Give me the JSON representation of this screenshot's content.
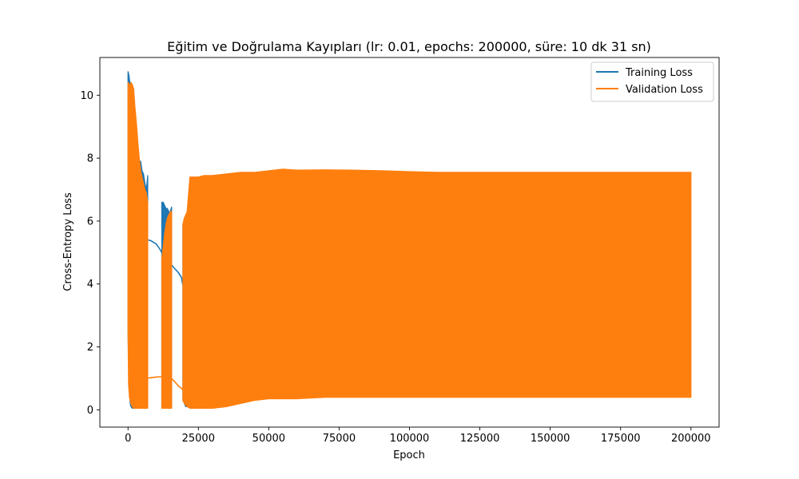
{
  "chart_data": {
    "type": "line",
    "title": "Eğitim ve Doğrulama Kayıpları (lr: 0.01, epochs: 200000, süre: 10 dk 31 sn)",
    "xlabel": "Epoch",
    "ylabel": "Cross-Entropy Loss",
    "xlim": [
      -10000,
      210000
    ],
    "ylim": [
      -0.55,
      11.2
    ],
    "x_ticks": [
      0,
      25000,
      50000,
      75000,
      100000,
      125000,
      150000,
      175000,
      200000
    ],
    "y_ticks": [
      0,
      2,
      4,
      6,
      8,
      10
    ],
    "grid": false,
    "legend_position": "top-right",
    "series": [
      {
        "name": "Training Loss",
        "color": "#1f77b4",
        "segments": [
          {
            "x": [
              0,
              200,
              400,
              600,
              800,
              1000,
              1500,
              2000,
              2500,
              3000,
              3500,
              4000,
              4500,
              5000,
              5500,
              6000,
              6500,
              7000
            ],
            "upper": [
              10.75,
              10.7,
              10.6,
              10.45,
              10.4,
              10.3,
              9.9,
              9.5,
              9.0,
              8.6,
              8.2,
              7.9,
              7.9,
              7.6,
              7.5,
              7.2,
              7.0,
              7.45
            ],
            "lower": [
              2.5,
              1.6,
              0.8,
              0.4,
              0.2,
              0.1,
              0.05,
              0.05,
              0.05,
              0.1,
              0.1,
              0.1,
              0.1,
              0.1,
              0.1,
              0.1,
              0.1,
              0.1
            ]
          },
          {
            "x": [
              12000,
              12500,
              13000,
              13500,
              14000,
              14500,
              15000,
              15500
            ],
            "upper": [
              6.6,
              6.6,
              6.5,
              6.4,
              6.4,
              6.3,
              6.3,
              6.45
            ],
            "lower": [
              0.05,
              0.05,
              0.05,
              0.05,
              0.05,
              0.05,
              0.05,
              0.05
            ]
          },
          {
            "x": [
              19500,
              20000,
              20500,
              21000,
              21500
            ],
            "upper": [
              5.9,
              5.95,
              5.8,
              6.0,
              6.2
            ],
            "lower": [
              0.3,
              0.2,
              0.1,
              0.1,
              0.1
            ]
          }
        ],
        "connector": {
          "x": [
            7000,
            8000,
            9000,
            10000,
            11000,
            12000,
            13000,
            14000,
            15000,
            16000,
            17000,
            18000,
            19000,
            20000
          ],
          "y": [
            5.4,
            5.38,
            5.33,
            5.27,
            5.15,
            5.0,
            4.85,
            4.75,
            4.65,
            4.55,
            4.45,
            4.35,
            4.2,
            3.7
          ]
        }
      },
      {
        "name": "Validation Loss",
        "color": "#ff7f0e",
        "segments": [
          {
            "x": [
              0,
              200,
              500,
              1000,
              1500,
              2000,
              2500,
              3000,
              3500,
              4000,
              4500,
              5000,
              5500,
              6000,
              6500,
              7000
            ],
            "upper": [
              10.4,
              10.4,
              10.3,
              10.4,
              10.35,
              10.2,
              9.6,
              9.1,
              8.5,
              8.0,
              7.6,
              7.4,
              7.2,
              7.0,
              6.9,
              6.6
            ],
            "lower": [
              2.5,
              0.8,
              0.4,
              0.2,
              0.1,
              0.05,
              0.05,
              0.05,
              0.05,
              0.05,
              0.05,
              0.05,
              0.05,
              0.05,
              0.05,
              0.05
            ]
          },
          {
            "x": [
              12000,
              12500,
              13000,
              13500,
              14000,
              14500,
              15000,
              15500
            ],
            "upper": [
              4.8,
              5.2,
              5.6,
              5.9,
              6.1,
              6.2,
              6.3,
              6.3
            ],
            "lower": [
              0.05,
              0.05,
              0.05,
              0.05,
              0.05,
              0.05,
              0.05,
              0.05
            ]
          },
          {
            "x": [
              19500,
              20000,
              21000,
              22000,
              23000,
              25000,
              27000,
              30000,
              35000,
              40000,
              45000,
              50000,
              55000,
              60000,
              70000,
              80000,
              90000,
              100000,
              110000,
              120000,
              130000,
              140000,
              150000,
              160000,
              170000,
              180000,
              190000,
              200000
            ],
            "upper": [
              5.9,
              6.1,
              6.3,
              7.4,
              7.4,
              7.4,
              7.45,
              7.45,
              7.5,
              7.55,
              7.55,
              7.6,
              7.65,
              7.62,
              7.63,
              7.62,
              7.6,
              7.57,
              7.55,
              7.55,
              7.55,
              7.55,
              7.55,
              7.55,
              7.55,
              7.55,
              7.55,
              7.55
            ],
            "lower": [
              0.3,
              0.2,
              0.1,
              0.05,
              0.05,
              0.05,
              0.05,
              0.05,
              0.1,
              0.2,
              0.3,
              0.35,
              0.35,
              0.35,
              0.4,
              0.4,
              0.4,
              0.4,
              0.4,
              0.4,
              0.4,
              0.4,
              0.4,
              0.4,
              0.4,
              0.4,
              0.4,
              0.4
            ]
          }
        ],
        "connector": {
          "x": [
            7000,
            8000,
            9000,
            10000,
            11000,
            12000,
            13000,
            14000,
            15000,
            16000,
            17000,
            18000,
            19000,
            20000
          ],
          "y": [
            1.0,
            1.02,
            1.03,
            1.04,
            1.05,
            1.05,
            1.05,
            1.04,
            1.03,
            0.95,
            0.85,
            0.75,
            0.68,
            0.6
          ]
        }
      }
    ]
  }
}
